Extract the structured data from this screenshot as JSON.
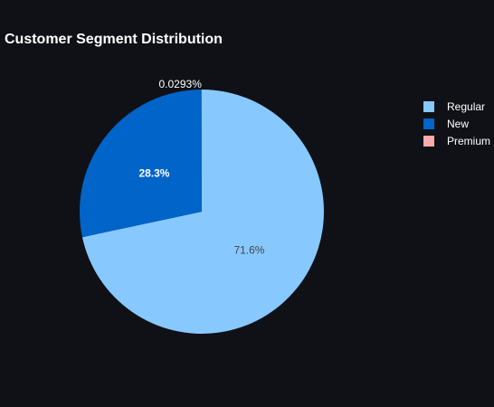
{
  "chart_data": {
    "type": "pie",
    "title": "Customer Segment Distribution",
    "categories": [
      "Regular",
      "New",
      "Premium"
    ],
    "values": [
      71.6,
      28.3,
      0.0293
    ],
    "percent_labels": [
      "71.6%",
      "28.3%",
      "0.0293%"
    ],
    "colors": [
      "#87c9ff",
      "#0064c8",
      "#ffaaaa"
    ],
    "label_colors": [
      "#444444",
      "#ffffff",
      "#ffffff"
    ],
    "background": "#0f1117",
    "legend": {
      "placement": "top-right",
      "entries": [
        "Regular",
        "New",
        "Premium"
      ]
    }
  }
}
